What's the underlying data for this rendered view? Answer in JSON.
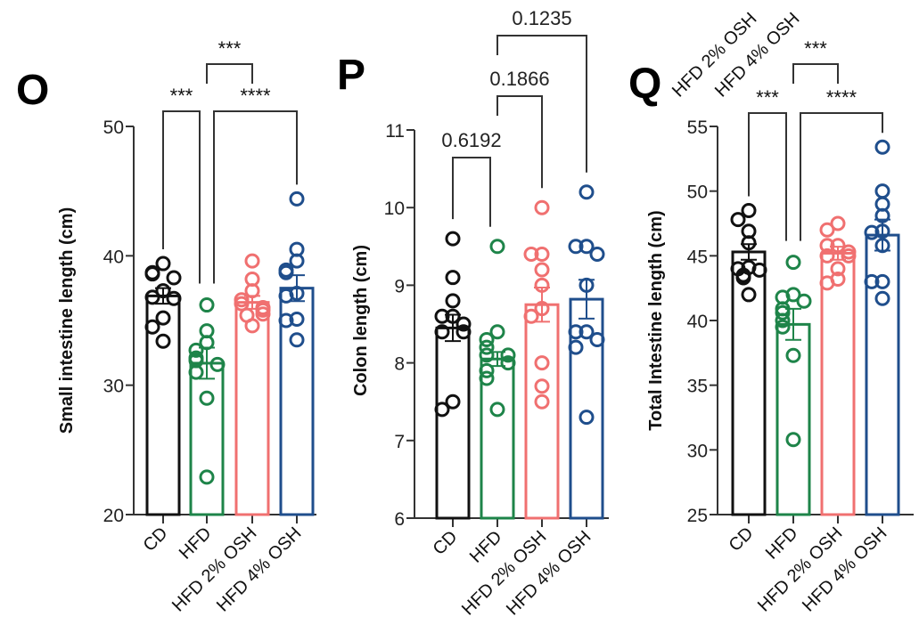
{
  "figure": {
    "cut_off_top_labels": [
      "HFD 2% OSH",
      "HFD 4% OSH"
    ]
  },
  "colors": {
    "CD": "#111111",
    "HFD": "#1e8449",
    "HFD 2% OSH": "#f07070",
    "HFD 4% OSH": "#1f4e8c"
  },
  "chart_data": [
    {
      "panel": "O",
      "type": "bar",
      "title": "",
      "xlabel": "",
      "ylabel": "Small intestine length (cm)",
      "ylim": [
        20,
        50
      ],
      "yticks": [
        20,
        30,
        40,
        50
      ],
      "categories": [
        "CD",
        "HFD",
        "HFD 2% OSH",
        "HFD 4% OSH"
      ],
      "means": [
        36.9,
        31.7,
        36.4,
        37.5
      ],
      "sem": [
        0.6,
        1.2,
        0.5,
        1.0
      ],
      "points": [
        [
          39.4,
          38.7,
          38.6,
          38.3,
          37.3,
          36.8,
          36.7,
          35.2,
          34.5,
          33.4
        ],
        [
          36.2,
          34.2,
          33.3,
          32.7,
          32.1,
          31.9,
          31.6,
          31.0,
          29.0,
          22.9
        ],
        [
          39.6,
          38.2,
          37.3,
          36.6,
          36.3,
          36.0,
          35.8,
          35.5,
          35.4,
          34.6
        ],
        [
          44.4,
          40.5,
          39.6,
          38.9,
          38.7,
          37.1,
          36.9,
          35.1,
          35.0,
          33.5
        ]
      ],
      "comparisons": [
        {
          "from": 0,
          "to": 1,
          "label": "***",
          "level": 1
        },
        {
          "from": 1,
          "to": 3,
          "label": "****",
          "level": 1
        },
        {
          "from": 1,
          "to": 2,
          "label": "***",
          "level": 2
        }
      ]
    },
    {
      "panel": "P",
      "type": "bar",
      "title": "",
      "xlabel": "",
      "ylabel": "Colon length (cm)",
      "ylim": [
        6,
        11
      ],
      "yticks": [
        6,
        7,
        8,
        9,
        10,
        11
      ],
      "categories": [
        "CD",
        "HFD",
        "HFD 2% OSH",
        "HFD 4% OSH"
      ],
      "means": [
        8.45,
        8.05,
        8.75,
        8.82
      ],
      "sem": [
        0.17,
        0.09,
        0.22,
        0.25
      ],
      "points": [
        [
          9.6,
          9.1,
          8.8,
          8.6,
          8.6,
          8.5,
          8.4,
          8.4,
          7.5,
          7.4
        ],
        [
          9.5,
          8.4,
          8.3,
          8.2,
          8.1,
          8.1,
          8.0,
          7.9,
          7.8,
          7.4
        ],
        [
          10.0,
          9.4,
          9.4,
          9.2,
          9.0,
          8.7,
          8.6,
          8.0,
          7.7,
          7.5
        ],
        [
          10.2,
          9.5,
          9.5,
          9.4,
          9.0,
          8.4,
          8.4,
          8.3,
          8.2,
          7.3
        ]
      ],
      "comparisons": [
        {
          "from": 0,
          "to": 1,
          "label": "0.6192",
          "level": 1
        },
        {
          "from": 1,
          "to": 2,
          "label": "0.1866",
          "level": 2
        },
        {
          "from": 1,
          "to": 3,
          "label": "0.1235",
          "level": 3
        }
      ]
    },
    {
      "panel": "Q",
      "type": "bar",
      "title": "",
      "xlabel": "",
      "ylabel": "Total Intestine length (cm)",
      "ylim": [
        25,
        55
      ],
      "yticks": [
        25,
        30,
        35,
        40,
        45,
        50,
        55
      ],
      "categories": [
        "CD",
        "HFD",
        "HFD 2% OSH",
        "HFD 4% OSH"
      ],
      "means": [
        45.3,
        39.7,
        45.2,
        46.6
      ],
      "sem": [
        0.6,
        1.2,
        0.5,
        1.2
      ],
      "points": [
        [
          48.5,
          47.8,
          46.9,
          46.0,
          44.1,
          44.0,
          43.9,
          43.5,
          43.3,
          42.0
        ],
        [
          44.5,
          42.0,
          41.8,
          41.5,
          40.9,
          40.6,
          40.0,
          39.5,
          37.3,
          30.8
        ],
        [
          47.5,
          47.0,
          45.8,
          45.8,
          45.3,
          45.0,
          45.0,
          44.0,
          43.2,
          42.9
        ],
        [
          53.4,
          50.0,
          49.0,
          48.1,
          46.9,
          46.8,
          45.8,
          43.0,
          43.0,
          41.7
        ]
      ],
      "comparisons": [
        {
          "from": 0,
          "to": 1,
          "label": "***",
          "level": 1
        },
        {
          "from": 1,
          "to": 3,
          "label": "****",
          "level": 1
        },
        {
          "from": 1,
          "to": 2,
          "label": "***",
          "level": 2
        }
      ]
    }
  ]
}
